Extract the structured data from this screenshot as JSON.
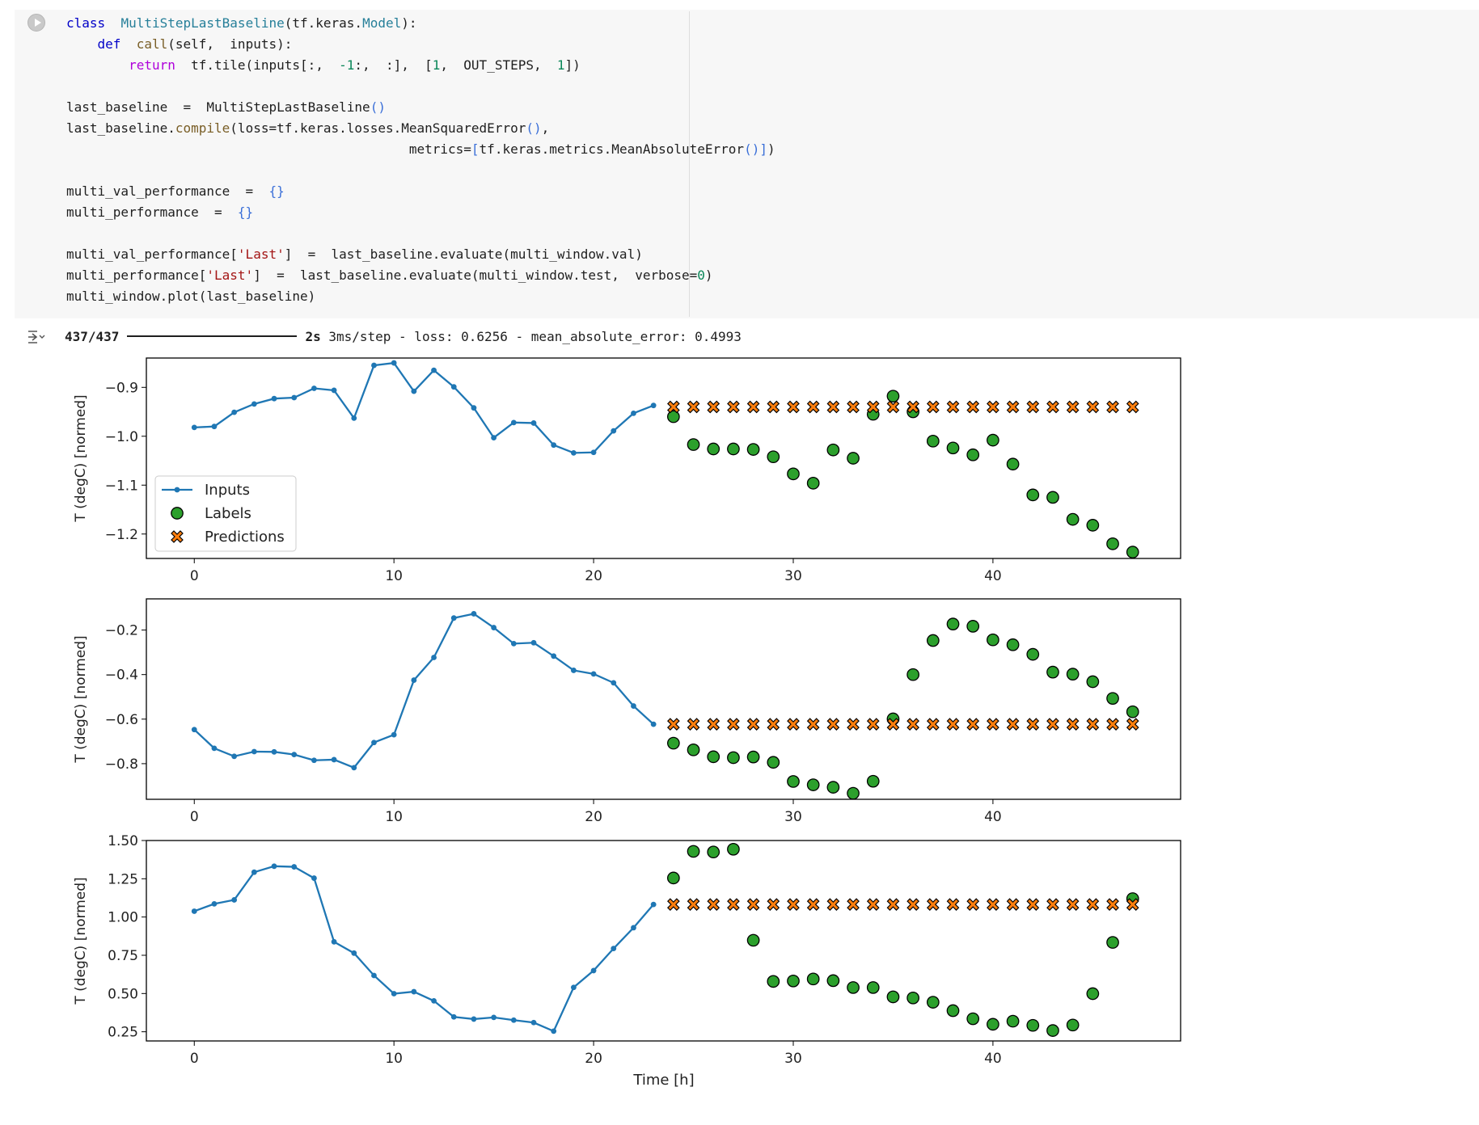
{
  "code_lines": [
    [
      [
        "kw",
        "class"
      ],
      [
        "",
        "  "
      ],
      [
        "cls",
        "MultiStepLastBaseline"
      ],
      [
        "",
        "(tf.keras."
      ],
      [
        "cls",
        "Model"
      ],
      [
        "",
        "):"
      ]
    ],
    [
      [
        "",
        "    "
      ],
      [
        "kw",
        "def"
      ],
      [
        "",
        "  "
      ],
      [
        "fn",
        "call"
      ],
      [
        "",
        "(self,  inputs):"
      ]
    ],
    [
      [
        "",
        "        "
      ],
      [
        "kwr",
        "return"
      ],
      [
        "",
        "  tf.tile(inputs[:,  "
      ],
      [
        "num",
        "-1"
      ],
      [
        "",
        ":,  :],  ["
      ],
      [
        "num",
        "1"
      ],
      [
        "",
        ",  OUT_STEPS,  "
      ],
      [
        "num",
        "1"
      ],
      [
        "",
        "])"
      ]
    ],
    [
      [
        "",
        ""
      ]
    ],
    [
      [
        "",
        "last_baseline  =  MultiStepLastBaseline"
      ],
      [
        "br",
        "()"
      ]
    ],
    [
      [
        "",
        "last_baseline."
      ],
      [
        "fn",
        "compile"
      ],
      [
        "",
        "(loss=tf.keras.losses.MeanSquaredError"
      ],
      [
        "br",
        "()"
      ],
      [
        "",
        ","
      ]
    ],
    [
      [
        "",
        "                                            metrics="
      ],
      [
        "br",
        "["
      ],
      [
        "",
        "tf.keras.metrics.MeanAbsoluteError"
      ],
      [
        "br",
        "()"
      ],
      [
        "br",
        "]"
      ],
      [
        "",
        ")"
      ]
    ],
    [
      [
        "",
        ""
      ]
    ],
    [
      [
        "",
        "multi_val_performance  =  "
      ],
      [
        "br",
        "{}"
      ]
    ],
    [
      [
        "",
        "multi_performance  =  "
      ],
      [
        "br",
        "{}"
      ]
    ],
    [
      [
        "",
        ""
      ]
    ],
    [
      [
        "",
        "multi_val_performance["
      ],
      [
        "str",
        "'Last'"
      ],
      [
        "",
        "]  =  last_baseline.evaluate(multi_window.val)"
      ]
    ],
    [
      [
        "",
        "multi_performance["
      ],
      [
        "str",
        "'Last'"
      ],
      [
        "",
        "]  =  last_baseline.evaluate(multi_window.test,  verbose="
      ],
      [
        "num",
        "0"
      ],
      [
        "",
        ")"
      ]
    ],
    [
      [
        "",
        "multi_window.plot(last_baseline)"
      ]
    ]
  ],
  "output": {
    "steps": "437/437",
    "time": "2s",
    "rest": "3ms/step - loss: 0.6256 - mean_absolute_error: 0.4993"
  },
  "chart_data": {
    "type": "scatter",
    "xlabel": "Time [h]",
    "colors": {
      "inputs": "#1f77b4",
      "labels": "#2ca02c",
      "predictions": "#ff7f0e"
    },
    "legend": {
      "placement": "lower-left",
      "entries": [
        "Inputs",
        "Labels",
        "Predictions"
      ]
    },
    "subplots": [
      {
        "ylabel": "T (degC) [normed]",
        "xlim": [
          -2.4,
          49.4
        ],
        "ylim": [
          -1.25,
          -0.84
        ],
        "yticks": [
          -0.9,
          -1.0,
          -1.1,
          -1.2
        ],
        "yticklabels": [
          "−0.9",
          "−1.0",
          "−1.1",
          "−1.2"
        ],
        "xticks": [
          0,
          10,
          20,
          30,
          40
        ],
        "inputs": [
          -0.982,
          -0.98,
          -0.951,
          -0.934,
          -0.923,
          -0.921,
          -0.902,
          -0.906,
          -0.963,
          -0.855,
          -0.85,
          -0.908,
          -0.865,
          -0.899,
          -0.942,
          -1.003,
          -0.972,
          -0.973,
          -1.018,
          -1.034,
          -1.033,
          -0.989,
          -0.953,
          -0.937
        ],
        "labels": [
          -0.96,
          -1.017,
          -1.026,
          -1.026,
          -1.027,
          -1.042,
          -1.077,
          -1.096,
          -1.028,
          -1.045,
          -0.955,
          -0.918,
          -0.95,
          -1.01,
          -1.024,
          -1.038,
          -1.008,
          -1.057,
          -1.12,
          -1.125,
          -1.17,
          -1.182,
          -1.22,
          -1.237
        ],
        "predictions": [
          -0.94,
          -0.94,
          -0.94,
          -0.94,
          -0.94,
          -0.94,
          -0.94,
          -0.94,
          -0.94,
          -0.94,
          -0.94,
          -0.94,
          -0.94,
          -0.94,
          -0.94,
          -0.94,
          -0.94,
          -0.94,
          -0.94,
          -0.94,
          -0.94,
          -0.94,
          -0.94,
          -0.94
        ]
      },
      {
        "ylabel": "T (degC) [normed]",
        "xlim": [
          -2.4,
          49.4
        ],
        "ylim": [
          -0.96,
          -0.06
        ],
        "yticks": [
          -0.2,
          -0.4,
          -0.6,
          -0.8
        ],
        "yticklabels": [
          "−0.2",
          "−0.4",
          "−0.6",
          "−0.8"
        ],
        "xticks": [
          0,
          10,
          20,
          30,
          40
        ],
        "inputs": [
          -0.647,
          -0.731,
          -0.767,
          -0.746,
          -0.747,
          -0.759,
          -0.785,
          -0.782,
          -0.818,
          -0.705,
          -0.67,
          -0.425,
          -0.323,
          -0.146,
          -0.127,
          -0.189,
          -0.261,
          -0.257,
          -0.317,
          -0.381,
          -0.397,
          -0.437,
          -0.541,
          -0.623
        ],
        "labels": [
          -0.708,
          -0.738,
          -0.769,
          -0.773,
          -0.77,
          -0.794,
          -0.88,
          -0.895,
          -0.906,
          -0.933,
          -0.879,
          -0.599,
          -0.4,
          -0.247,
          -0.173,
          -0.183,
          -0.244,
          -0.266,
          -0.309,
          -0.389,
          -0.398,
          -0.432,
          -0.507,
          -0.567
        ],
        "predictions": [
          -0.623,
          -0.623,
          -0.623,
          -0.623,
          -0.623,
          -0.623,
          -0.623,
          -0.623,
          -0.623,
          -0.623,
          -0.623,
          -0.623,
          -0.623,
          -0.623,
          -0.623,
          -0.623,
          -0.623,
          -0.623,
          -0.623,
          -0.623,
          -0.623,
          -0.623,
          -0.623,
          -0.623
        ]
      },
      {
        "ylabel": "T (degC) [normed]",
        "xlim": [
          -2.4,
          49.4
        ],
        "ylim": [
          0.19,
          1.5
        ],
        "yticks": [
          1.5,
          1.25,
          1.0,
          0.75,
          0.5,
          0.25
        ],
        "yticklabels": [
          "1.50",
          "1.25",
          "1.00",
          "0.75",
          "0.50",
          "0.25"
        ],
        "xticks": [
          0,
          10,
          20,
          30,
          40
        ],
        "inputs": [
          1.038,
          1.086,
          1.112,
          1.293,
          1.332,
          1.328,
          1.254,
          0.838,
          0.764,
          0.618,
          0.499,
          0.512,
          0.452,
          0.347,
          0.333,
          0.344,
          0.326,
          0.31,
          0.254,
          0.54,
          0.65,
          0.794,
          0.93,
          1.082
        ],
        "labels": [
          1.255,
          1.429,
          1.425,
          1.443,
          0.848,
          0.579,
          0.582,
          0.595,
          0.584,
          0.539,
          0.539,
          0.478,
          0.471,
          0.443,
          0.388,
          0.335,
          0.299,
          0.319,
          0.292,
          0.258,
          0.294,
          0.499,
          0.834,
          1.12
        ],
        "predictions": [
          1.082,
          1.082,
          1.082,
          1.082,
          1.082,
          1.082,
          1.082,
          1.082,
          1.082,
          1.082,
          1.082,
          1.082,
          1.082,
          1.082,
          1.082,
          1.082,
          1.082,
          1.082,
          1.082,
          1.082,
          1.082,
          1.082,
          1.082,
          1.082
        ]
      }
    ]
  }
}
